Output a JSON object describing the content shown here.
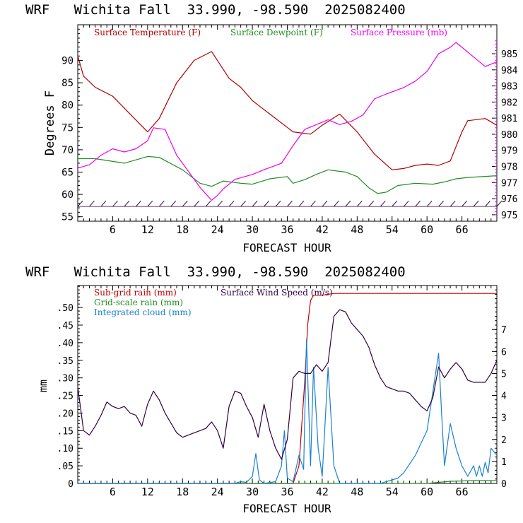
{
  "panel1": {
    "header": "WRF   Wichita Fall  33.990, -98.590  2025082400",
    "legend": {
      "temp": "Surface Temperature (F)",
      "dew": "Surface Dewpoint (F)",
      "pres": "Surface Pressure (mb)"
    },
    "ylabel": "Degrees F",
    "xlabel": "FORECAST HOUR",
    "colors": {
      "temp": "#b00000",
      "dew": "#228b22",
      "pres": "#ee00ee",
      "wind": "#300040",
      "axis": "#000000"
    }
  },
  "panel2": {
    "header": "WRF   Wichita Fall  33.990, -98.590  2025082400",
    "legend": {
      "subgrid": "Sub-grid rain (mm)",
      "grid": "Grid-scale rain (mm)",
      "cloud": "Integrated cloud (mm)",
      "wind": "Surface Wind Speed (m/s)"
    },
    "ylabel": "mm",
    "xlabel": "FORECAST HOUR",
    "colors": {
      "subgrid": "#c00000",
      "grid": "#228b22",
      "cloud": "#1a80d0",
      "wind": "#300040"
    }
  },
  "chart_data": [
    {
      "type": "line",
      "x_ticks": [
        "6",
        "12",
        "18",
        "24",
        "30",
        "36",
        "42",
        "48",
        "54",
        "60",
        "66"
      ],
      "xlim": [
        0,
        72
      ],
      "left_axis": {
        "ticks": [
          "55",
          "60",
          "65",
          "70",
          "75",
          "80",
          "85",
          "90"
        ],
        "ylim": [
          54,
          98
        ]
      },
      "right_axis": {
        "ticks": [
          "975",
          "976",
          "977",
          "978",
          "979",
          "980",
          "981",
          "982",
          "983",
          "984",
          "985"
        ],
        "ylim": [
          974.6,
          986.8
        ]
      },
      "series": [
        {
          "name": "Surface Temperature (F)",
          "axis": "left",
          "color": "#b00000",
          "points": [
            [
              0,
              91
            ],
            [
              1,
              86.5
            ],
            [
              3,
              84
            ],
            [
              6,
              82
            ],
            [
              9,
              78
            ],
            [
              12,
              74
            ],
            [
              14,
              77
            ],
            [
              17,
              85
            ],
            [
              20,
              90
            ],
            [
              23,
              92
            ],
            [
              25,
              88
            ],
            [
              26,
              86
            ],
            [
              28,
              84
            ],
            [
              30,
              81
            ],
            [
              31,
              80
            ],
            [
              33,
              78
            ],
            [
              36,
              75
            ],
            [
              37,
              74
            ],
            [
              40,
              73.5
            ],
            [
              42,
              75.5
            ],
            [
              45,
              78
            ],
            [
              48,
              74
            ],
            [
              51,
              69
            ],
            [
              54,
              65.5
            ],
            [
              56,
              65.8
            ],
            [
              58,
              66.5
            ],
            [
              60,
              66.8
            ],
            [
              62,
              66.5
            ],
            [
              64,
              67.5
            ],
            [
              66,
              74
            ],
            [
              67,
              76.5
            ],
            [
              70,
              77
            ],
            [
              72,
              75.5
            ]
          ]
        },
        {
          "name": "Surface Dewpoint (F)",
          "axis": "left",
          "color": "#228b22",
          "points": [
            [
              0,
              68
            ],
            [
              3,
              68
            ],
            [
              8,
              67
            ],
            [
              12,
              68.5
            ],
            [
              14,
              68.3
            ],
            [
              18,
              65.5
            ],
            [
              21,
              62.5
            ],
            [
              23,
              61.8
            ],
            [
              25,
              63
            ],
            [
              28,
              62.5
            ],
            [
              30,
              62.3
            ],
            [
              33,
              63.5
            ],
            [
              36,
              64
            ],
            [
              37,
              62.5
            ],
            [
              39,
              63.3
            ],
            [
              41,
              64.5
            ],
            [
              43,
              65.5
            ],
            [
              46,
              65
            ],
            [
              48,
              64
            ],
            [
              50,
              61.5
            ],
            [
              51.5,
              60.2
            ],
            [
              53,
              60.5
            ],
            [
              55,
              62
            ],
            [
              58,
              62.5
            ],
            [
              61,
              62.3
            ],
            [
              63,
              62.8
            ],
            [
              65,
              63.5
            ],
            [
              67,
              63.8
            ],
            [
              72,
              64.2
            ]
          ]
        },
        {
          "name": "Surface Pressure (mb)",
          "axis": "right",
          "color": "#ee00ee",
          "points": [
            [
              0,
              977.9
            ],
            [
              2,
              978.1
            ],
            [
              4,
              978.7
            ],
            [
              6,
              979.1
            ],
            [
              8,
              978.9
            ],
            [
              10,
              979.1
            ],
            [
              12,
              979.6
            ],
            [
              13,
              980.4
            ],
            [
              15,
              980.3
            ],
            [
              17,
              978.7
            ],
            [
              19,
              977.7
            ],
            [
              21,
              976.7
            ],
            [
              22,
              976.3
            ],
            [
              23,
              975.9
            ],
            [
              24,
              976.2
            ],
            [
              25,
              976.6
            ],
            [
              27,
              977.2
            ],
            [
              29,
              977.4
            ],
            [
              30,
              977.5
            ],
            [
              32,
              977.8
            ],
            [
              35,
              978.2
            ],
            [
              37,
              979.3
            ],
            [
              39,
              980.3
            ],
            [
              41,
              980.6
            ],
            [
              43,
              980.9
            ],
            [
              45,
              980.6
            ],
            [
              47,
              980.8
            ],
            [
              49,
              981.2
            ],
            [
              51,
              982.2
            ],
            [
              53,
              982.5
            ],
            [
              56,
              982.9
            ],
            [
              58,
              983.3
            ],
            [
              60,
              983.9
            ],
            [
              62,
              985.0
            ],
            [
              64,
              985.4
            ],
            [
              65,
              985.7
            ],
            [
              66,
              985.4
            ],
            [
              68,
              984.8
            ],
            [
              70,
              984.2
            ],
            [
              72,
              984.5
            ]
          ]
        },
        {
          "name": "Wind barbs",
          "axis": "left",
          "color": "#300040",
          "barb_y": 57.3,
          "x": [
            0,
            2,
            4,
            6,
            8,
            10,
            12,
            14,
            16,
            18,
            20,
            22,
            24,
            26,
            28,
            30,
            32,
            34,
            36,
            38,
            40,
            42,
            44,
            46,
            48,
            50,
            52,
            54,
            56,
            58,
            60,
            62,
            64,
            66,
            68,
            70,
            72
          ]
        }
      ]
    },
    {
      "type": "line",
      "x_ticks": [
        "6",
        "12",
        "18",
        "24",
        "30",
        "36",
        "42",
        "48",
        "54",
        "60",
        "66"
      ],
      "xlim": [
        0,
        72
      ],
      "left_axis": {
        "ticks": [
          "0",
          ".05",
          ".10",
          ".15",
          ".20",
          ".25",
          ".30",
          ".35",
          ".40",
          ".45",
          ".50"
        ],
        "ylim": [
          0,
          0.5625
        ]
      },
      "right_axis": {
        "ticks": [
          "0",
          "1",
          "2",
          "3",
          "4",
          "5",
          "6",
          "7"
        ],
        "ylim": [
          0,
          9
        ]
      },
      "series": [
        {
          "name": "Sub-grid rain (mm)",
          "axis": "left",
          "color": "#c00000",
          "points": [
            [
              0,
              0
            ],
            [
              37,
              0
            ],
            [
              38,
              0.05
            ],
            [
              39,
              0.29
            ],
            [
              39.5,
              0.45
            ],
            [
              40,
              0.52
            ],
            [
              40.5,
              0.535
            ],
            [
              42,
              0.535
            ],
            [
              44,
              0.54
            ],
            [
              72,
              0.54
            ]
          ]
        },
        {
          "name": "Grid-scale rain (mm)",
          "axis": "left",
          "color": "#228b22",
          "points": [
            [
              0,
              0
            ],
            [
              60,
              0
            ],
            [
              62,
              0.003
            ],
            [
              64,
              0.006
            ],
            [
              68,
              0.008
            ],
            [
              72,
              0.008
            ]
          ]
        },
        {
          "name": "Integrated cloud (mm)",
          "axis": "left",
          "color": "#1a80d0",
          "points": [
            [
              0,
              0
            ],
            [
              27,
              0
            ],
            [
              28,
              0.005
            ],
            [
              29,
              0.003
            ],
            [
              30,
              0.02
            ],
            [
              30.6,
              0.085
            ],
            [
              31.2,
              0.01
            ],
            [
              32,
              0
            ],
            [
              34,
              0.005
            ],
            [
              35,
              0.05
            ],
            [
              35.5,
              0.15
            ],
            [
              36,
              0.015
            ],
            [
              37,
              0.005
            ],
            [
              38,
              0.08
            ],
            [
              38.8,
              0.04
            ],
            [
              39.3,
              0.41
            ],
            [
              40,
              0.05
            ],
            [
              40.5,
              0.33
            ],
            [
              41.3,
              0.1
            ],
            [
              42,
              0.02
            ],
            [
              43,
              0.33
            ],
            [
              44,
              0.05
            ],
            [
              45,
              0
            ],
            [
              52,
              0
            ],
            [
              55,
              0.015
            ],
            [
              56,
              0.03
            ],
            [
              58,
              0.08
            ],
            [
              60,
              0.15
            ],
            [
              61,
              0.26
            ],
            [
              62,
              0.37
            ],
            [
              62.5,
              0.2
            ],
            [
              63,
              0.05
            ],
            [
              64,
              0.17
            ],
            [
              65,
              0.1
            ],
            [
              66,
              0.05
            ],
            [
              67,
              0.02
            ],
            [
              68,
              0.05
            ],
            [
              68.5,
              0.02
            ],
            [
              69,
              0.05
            ],
            [
              69.5,
              0.02
            ],
            [
              70,
              0.06
            ],
            [
              70.5,
              0.03
            ],
            [
              71,
              0.1
            ],
            [
              72,
              0.08
            ]
          ]
        },
        {
          "name": "Surface Wind Speed (m/s)",
          "axis": "right",
          "color": "#300040",
          "points": [
            [
              0,
              4.4
            ],
            [
              1,
              2.4
            ],
            [
              2,
              2.2
            ],
            [
              3,
              2.6
            ],
            [
              4,
              3.1
            ],
            [
              5,
              3.7
            ],
            [
              6,
              3.5
            ],
            [
              7,
              3.4
            ],
            [
              8,
              3.5
            ],
            [
              9,
              3.2
            ],
            [
              10,
              3.1
            ],
            [
              11,
              2.6
            ],
            [
              12,
              3.6
            ],
            [
              13,
              4.2
            ],
            [
              14,
              3.8
            ],
            [
              15,
              3.2
            ],
            [
              17,
              2.3
            ],
            [
              18,
              2.1
            ],
            [
              19,
              2.2
            ],
            [
              20,
              2.3
            ],
            [
              21,
              2.4
            ],
            [
              22,
              2.5
            ],
            [
              23,
              2.8
            ],
            [
              24,
              2.4
            ],
            [
              25,
              1.6
            ],
            [
              26,
              3.5
            ],
            [
              27,
              4.2
            ],
            [
              28,
              4.1
            ],
            [
              29,
              3.5
            ],
            [
              30,
              3.0
            ],
            [
              31,
              2.1
            ],
            [
              32,
              3.6
            ],
            [
              33,
              2.4
            ],
            [
              34,
              1.6
            ],
            [
              35,
              1.1
            ],
            [
              36,
              2.0
            ],
            [
              37,
              4.8
            ],
            [
              38,
              5.1
            ],
            [
              39,
              5.0
            ],
            [
              40,
              5.0
            ],
            [
              41,
              5.4
            ],
            [
              42,
              5.1
            ],
            [
              43,
              5.5
            ],
            [
              44,
              7.6
            ],
            [
              45,
              7.9
            ],
            [
              46,
              7.8
            ],
            [
              47,
              7.3
            ],
            [
              48,
              7.0
            ],
            [
              49,
              6.7
            ],
            [
              50,
              6.2
            ],
            [
              51,
              5.4
            ],
            [
              52,
              4.8
            ],
            [
              53,
              4.4
            ],
            [
              54,
              4.3
            ],
            [
              55,
              4.2
            ],
            [
              56,
              4.2
            ],
            [
              57,
              4.1
            ],
            [
              58,
              3.8
            ],
            [
              59,
              3.5
            ],
            [
              60,
              3.3
            ],
            [
              61,
              3.9
            ],
            [
              62,
              5.3
            ],
            [
              63,
              4.8
            ],
            [
              64,
              5.2
            ],
            [
              65,
              5.5
            ],
            [
              66,
              5.2
            ],
            [
              67,
              4.7
            ],
            [
              68,
              4.6
            ],
            [
              69,
              4.6
            ],
            [
              70,
              4.6
            ],
            [
              71,
              5.0
            ],
            [
              72,
              5.6
            ]
          ]
        }
      ]
    }
  ]
}
